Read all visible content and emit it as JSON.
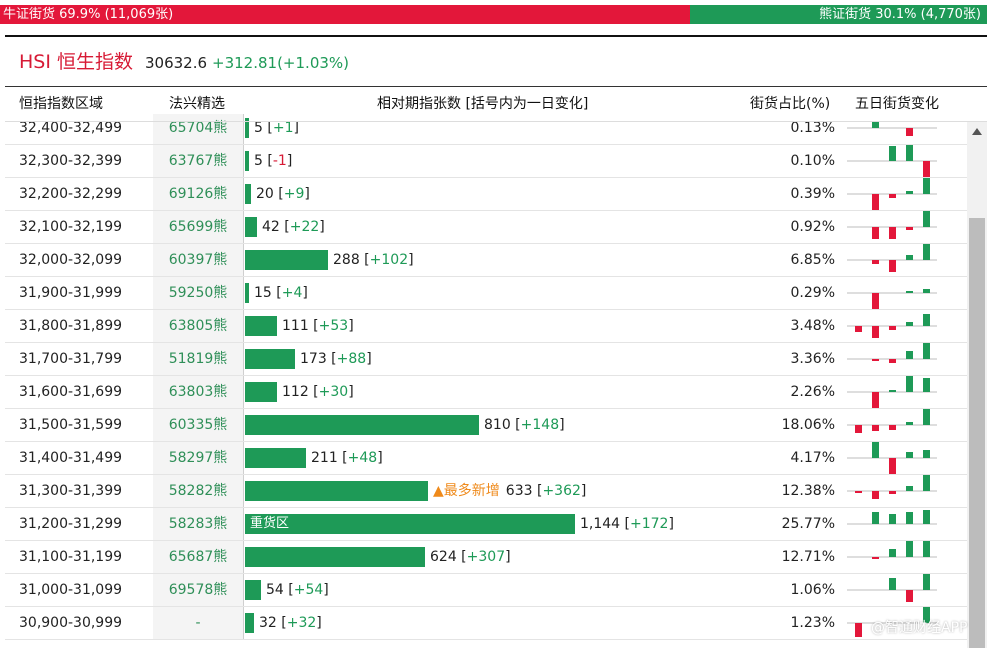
{
  "top_bar": {
    "cut_title": "",
    "bull_label": "牛证街货 69.9% (11,069张)",
    "bear_label": "熊证街货 30.1% (4,770张)",
    "bull_share": 0.699,
    "bull_color": "#e3173a",
    "bear_color": "#1e9a57"
  },
  "index": {
    "name": "HSI 恒生指数",
    "value": "30632.6",
    "change": "+312.81(+1.03%)"
  },
  "columns": {
    "range": "恒指指数区域",
    "selection": "法兴精选",
    "relative": "相对期指张数 [括号内为一日变化]",
    "share": "街货占比(%)",
    "five_day": "五日街货变化"
  },
  "scale_max": 1144,
  "rows": [
    {
      "range": "32,400-32,499",
      "code": "65704熊",
      "count": 5,
      "count_label": "5",
      "delta": "+1",
      "share": "0.13%",
      "five": [
        0,
        6,
        0,
        -8,
        0
      ]
    },
    {
      "range": "32,300-32,399",
      "code": "63767熊",
      "count": 5,
      "count_label": "5",
      "delta": "-1",
      "share": "0.10%",
      "five": [
        0,
        0,
        15,
        16,
        -16
      ]
    },
    {
      "range": "32,200-32,299",
      "code": "69126熊",
      "count": 20,
      "count_label": "20",
      "delta": "+9",
      "share": "0.39%",
      "five": [
        0,
        -16,
        -4,
        3,
        16
      ]
    },
    {
      "range": "32,100-32,199",
      "code": "65699熊",
      "count": 42,
      "count_label": "42",
      "delta": "+22",
      "share": "0.92%",
      "five": [
        0,
        -12,
        -12,
        -3,
        16
      ]
    },
    {
      "range": "32,000-32,099",
      "code": "60397熊",
      "count": 288,
      "count_label": "288",
      "delta": "+102",
      "share": "6.85%",
      "five": [
        0,
        -4,
        -12,
        5,
        16
      ]
    },
    {
      "range": "31,900-31,999",
      "code": "59250熊",
      "count": 15,
      "count_label": "15",
      "delta": "+4",
      "share": "0.29%",
      "five": [
        0,
        -16,
        0,
        2,
        4
      ]
    },
    {
      "range": "31,800-31,899",
      "code": "63805熊",
      "count": 111,
      "count_label": "111",
      "delta": "+53",
      "share": "3.48%",
      "five": [
        -6,
        -12,
        -4,
        4,
        12
      ]
    },
    {
      "range": "31,700-31,799",
      "code": "51819熊",
      "count": 173,
      "count_label": "173",
      "delta": "+88",
      "share": "3.36%",
      "five": [
        0,
        -2,
        -4,
        8,
        16
      ]
    },
    {
      "range": "31,600-31,699",
      "code": "63803熊",
      "count": 112,
      "count_label": "112",
      "delta": "+30",
      "share": "2.26%",
      "five": [
        0,
        -16,
        2,
        16,
        14
      ]
    },
    {
      "range": "31,500-31,599",
      "code": "60335熊",
      "count": 810,
      "count_label": "810",
      "delta": "+148",
      "share": "18.06%",
      "five": [
        -8,
        -6,
        -5,
        3,
        16
      ]
    },
    {
      "range": "31,400-31,499",
      "code": "58297熊",
      "count": 211,
      "count_label": "211",
      "delta": "+48",
      "share": "4.17%",
      "five": [
        0,
        16,
        -16,
        6,
        8
      ]
    },
    {
      "range": "31,300-31,399",
      "code": "58282熊",
      "count": 633,
      "count_label": "633",
      "delta": "+362",
      "share": "12.38%",
      "five": [
        -2,
        -8,
        -3,
        5,
        16
      ],
      "tag": "▲最多新增"
    },
    {
      "range": "31,200-31,299",
      "code": "58283熊",
      "count": 1144,
      "count_label": "1,144",
      "delta": "+172",
      "share": "25.77%",
      "five": [
        0,
        12,
        10,
        12,
        14
      ],
      "inner_label": "重货区"
    },
    {
      "range": "31,100-31,199",
      "code": "65687熊",
      "count": 624,
      "count_label": "624",
      "delta": "+307",
      "share": "12.71%",
      "five": [
        0,
        -2,
        8,
        16,
        16
      ]
    },
    {
      "range": "31,000-31,099",
      "code": "69578熊",
      "count": 54,
      "count_label": "54",
      "delta": "+54",
      "share": "1.06%",
      "five": [
        0,
        0,
        12,
        -12,
        16
      ]
    },
    {
      "range": "30,900-30,999",
      "code": "-",
      "count": 32,
      "count_label": "32",
      "delta": "+32",
      "share": "1.23%",
      "five": [
        -14,
        0,
        0,
        0,
        16
      ]
    }
  ],
  "mini_colors": {
    "up": "#1e9a57",
    "down": "#e3173a",
    "axis": "#bdbdbd"
  },
  "watermark": "@智通财经APP"
}
